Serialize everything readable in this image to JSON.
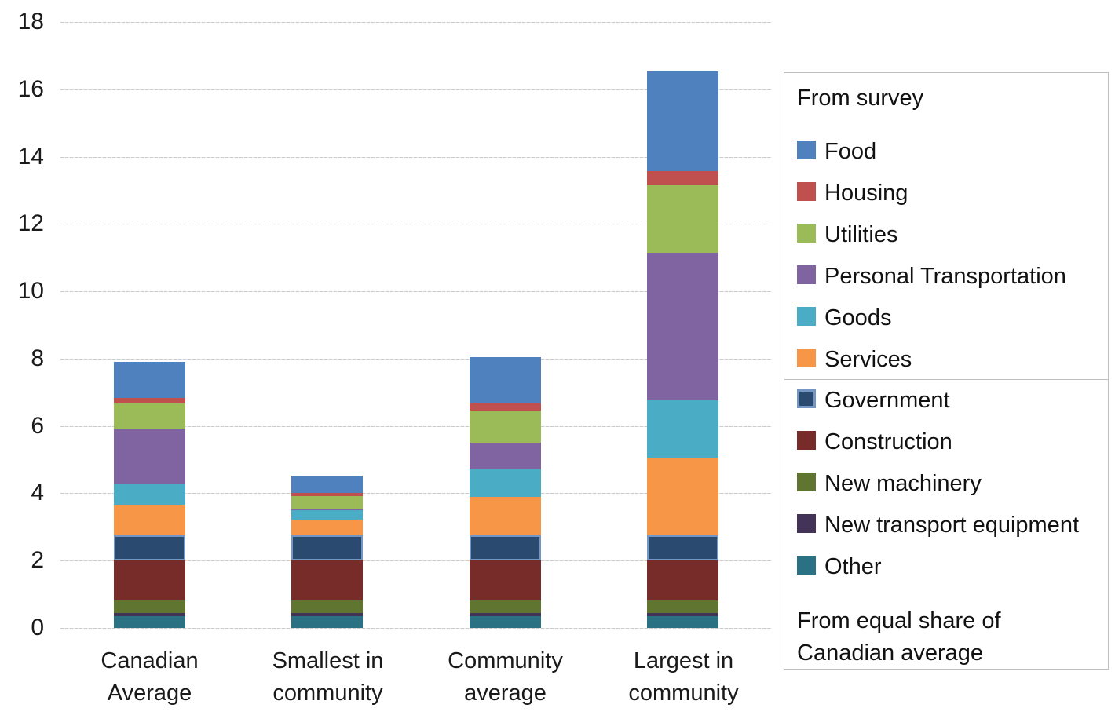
{
  "chart_data": {
    "type": "bar",
    "stacked": true,
    "title": "",
    "xlabel": "",
    "ylabel": "",
    "ylim": [
      0,
      18
    ],
    "ytick_step": 2,
    "grid": "horizontal",
    "legend_position": "right",
    "categories": [
      "Canadian Average",
      "Smallest in community",
      "Community average",
      "Largest in community"
    ],
    "category_label_lines": [
      [
        "Canadian",
        "Average"
      ],
      [
        "Smallest in",
        "community"
      ],
      [
        "Community",
        "average"
      ],
      [
        "Largest in",
        "community"
      ]
    ],
    "totals": [
      7.9,
      4.52,
      8.05,
      16.54
    ],
    "series_note": "series listed bottom-to-top in stack order; values per category",
    "series": [
      {
        "name": "Other",
        "color": "#2A7183",
        "values": [
          0.35,
          0.35,
          0.35,
          0.35
        ]
      },
      {
        "name": "New transport equipment",
        "color": "#433358",
        "values": [
          0.09,
          0.09,
          0.09,
          0.09
        ]
      },
      {
        "name": "New machinery",
        "color": "#5F7530",
        "values": [
          0.38,
          0.38,
          0.38,
          0.38
        ]
      },
      {
        "name": "Construction",
        "color": "#772C2A",
        "values": [
          1.19,
          1.19,
          1.19,
          1.19
        ]
      },
      {
        "name": "Government",
        "color": "#2A4A70",
        "border": "#7396C5",
        "values": [
          0.75,
          0.75,
          0.75,
          0.75
        ]
      },
      {
        "name": "Services",
        "color": "#F79646",
        "values": [
          0.91,
          0.45,
          1.14,
          2.31
        ]
      },
      {
        "name": "Goods",
        "color": "#4BACC6",
        "values": [
          0.61,
          0.29,
          0.8,
          1.68
        ]
      },
      {
        "name": "Personal Transportation",
        "color": "#8064A2",
        "values": [
          1.62,
          0.05,
          0.81,
          4.39
        ]
      },
      {
        "name": "Utilities",
        "color": "#9BBB59",
        "values": [
          0.77,
          0.37,
          0.96,
          2.01
        ]
      },
      {
        "name": "Housing",
        "color": "#C0504D",
        "values": [
          0.16,
          0.09,
          0.21,
          0.42
        ]
      },
      {
        "name": "Food",
        "color": "#4E81BD",
        "values": [
          1.07,
          0.51,
          1.37,
          2.97
        ]
      }
    ]
  },
  "legend": {
    "survey": {
      "title": "From survey",
      "items": [
        "Food",
        "Housing",
        "Utilities",
        "Personal Transportation",
        "Goods",
        "Services"
      ]
    },
    "equal_share": {
      "items": [
        "Government",
        "Construction",
        "New machinery",
        "New transport equipment",
        "Other"
      ],
      "footer_lines": [
        "From equal share of",
        "Canadian average"
      ]
    }
  },
  "axis": {
    "y_tick_labels": [
      "0",
      "2",
      "4",
      "6",
      "8",
      "10",
      "12",
      "14",
      "16",
      "18"
    ]
  },
  "colors": {
    "gridline": "#D6D6D6",
    "legend_border": "#BFBFBF",
    "text": "#1A1A1A",
    "government_border": "#7396C5"
  }
}
